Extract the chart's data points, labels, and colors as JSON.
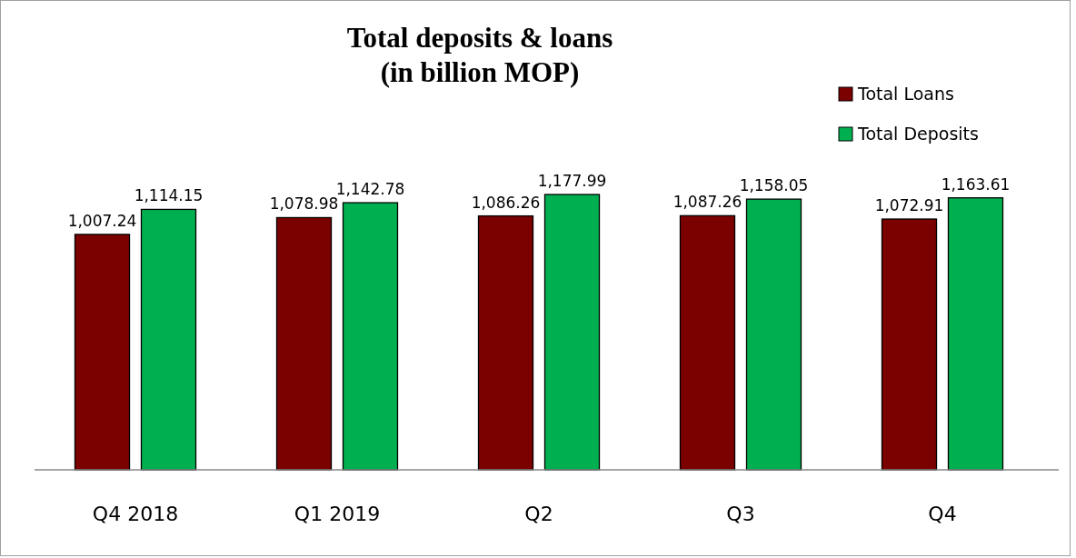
{
  "chart_data": {
    "type": "bar",
    "title": "Total deposits & loans\n(in billion MOP)",
    "categories": [
      "Q4 2018",
      "Q1 2019",
      "Q2",
      "Q3",
      "Q4"
    ],
    "series": [
      {
        "name": "Total Loans",
        "color": "#7b0000",
        "values": [
          1007.24,
          1078.98,
          1086.26,
          1087.26,
          1072.91
        ],
        "value_labels": [
          "1,007.24",
          "1,078.98",
          "1,086.26",
          "1,087.26",
          "1,072.91"
        ]
      },
      {
        "name": "Total Deposits",
        "color": "#00b050",
        "values": [
          1114.15,
          1142.78,
          1177.99,
          1158.05,
          1163.61
        ],
        "value_labels": [
          "1,114.15",
          "1,142.78",
          "1,177.99",
          "1,158.05",
          "1,163.61"
        ]
      }
    ],
    "legend": "top right"
  }
}
